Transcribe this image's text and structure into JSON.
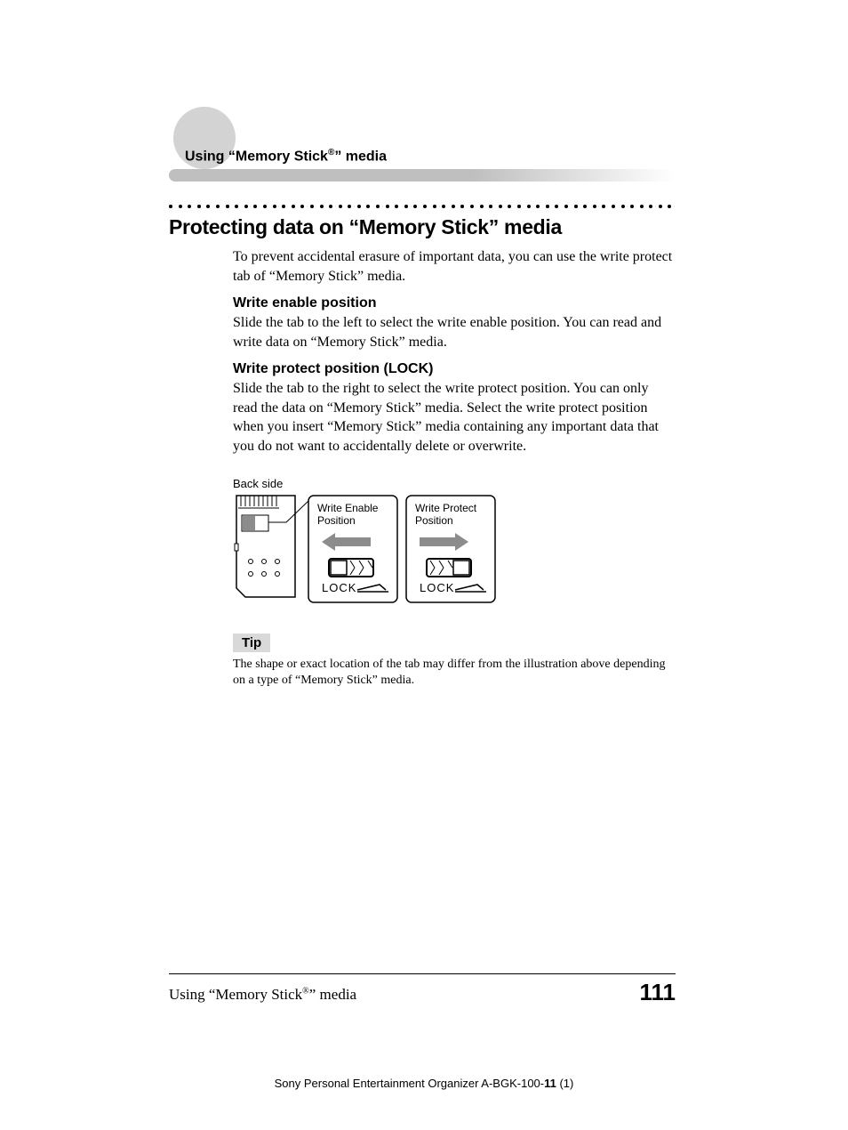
{
  "header": {
    "section_title_pre": "Using “Memory Stick",
    "section_title_sup": "®",
    "section_title_post": "” media"
  },
  "title": "Protecting data on “Memory Stick” media",
  "intro": "To prevent accidental erasure of important data, you can use the write protect tab of “Memory Stick” media.",
  "sections": [
    {
      "heading": "Write enable position",
      "body": "Slide the tab to the left to select the write enable position. You can read and write data on “Memory Stick” media."
    },
    {
      "heading": "Write protect position (LOCK)",
      "body": "Slide the tab to the right to select the write protect position. You can only read the data on “Memory Stick” media. Select the write protect position when you insert “Memory Stick” media containing any important data that you do not want to accidentally delete or overwrite."
    }
  ],
  "diagram": {
    "back_side_label": "Back side",
    "enable_label_l1": "Write Enable",
    "enable_label_l2": "Position",
    "protect_label_l1": "Write Protect",
    "protect_label_l2": "Position",
    "lock_text": "LOCK",
    "colors": {
      "stroke": "#000000",
      "tab_fill": "#8c8c8c",
      "arrow_fill": "#8c8c8c",
      "box_fill": "#ffffff"
    }
  },
  "tip": {
    "label": "Tip",
    "text": "The shape or exact location of the tab may differ from the illustration above depending on a type of “Memory Stick” media."
  },
  "footer": {
    "left_pre": "Using “Memory Stick",
    "left_sup": "®",
    "left_post": "” media",
    "page_number": "111",
    "meta_pre": "Sony Personal Entertainment Organizer  A-BGK-100-",
    "meta_bold": "11",
    "meta_post": " (1)"
  },
  "style": {
    "dot_count": 54
  }
}
